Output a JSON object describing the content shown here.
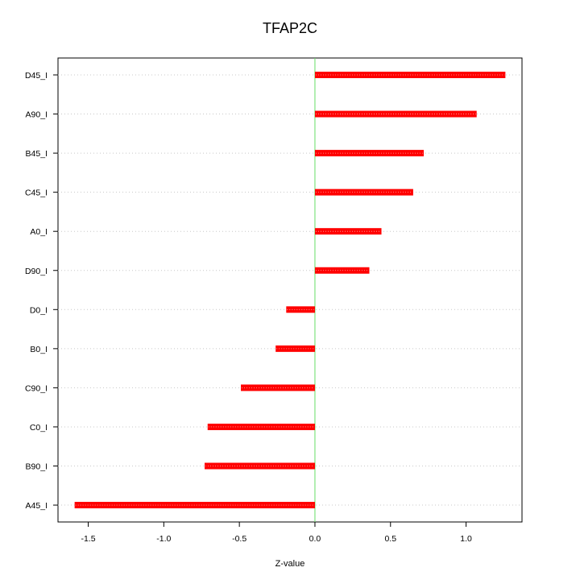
{
  "chart_data": {
    "type": "bar",
    "orientation": "horizontal",
    "title": "TFAP2C",
    "xlabel": "Z-value",
    "ylabel": "",
    "categories": [
      "D45_I",
      "A90_I",
      "B45_I",
      "C45_I",
      "A0_I",
      "D90_I",
      "D0_I",
      "B0_I",
      "C90_I",
      "C0_I",
      "B90_I",
      "A45_I"
    ],
    "values": [
      1.26,
      1.07,
      0.72,
      0.65,
      0.44,
      0.36,
      -0.19,
      -0.26,
      -0.49,
      -0.71,
      -0.73,
      -1.59
    ],
    "xlim": [
      -1.7,
      1.37
    ],
    "x_ticks": [
      -1.5,
      -1.0,
      -0.5,
      0.0,
      0.5,
      1.0
    ],
    "x_tick_labels": [
      "-1.5",
      "-1.0",
      "-0.5",
      "0.0",
      "0.5",
      "1.0"
    ],
    "grid": "horizontal dotted at each category",
    "reference_line": {
      "x": 0,
      "color": "#66dd66"
    },
    "colors": {
      "bar": "#ff0000",
      "bar_highlight": "#ffb0b0",
      "grid": "#c8c8c8",
      "axis": "#000000"
    }
  }
}
